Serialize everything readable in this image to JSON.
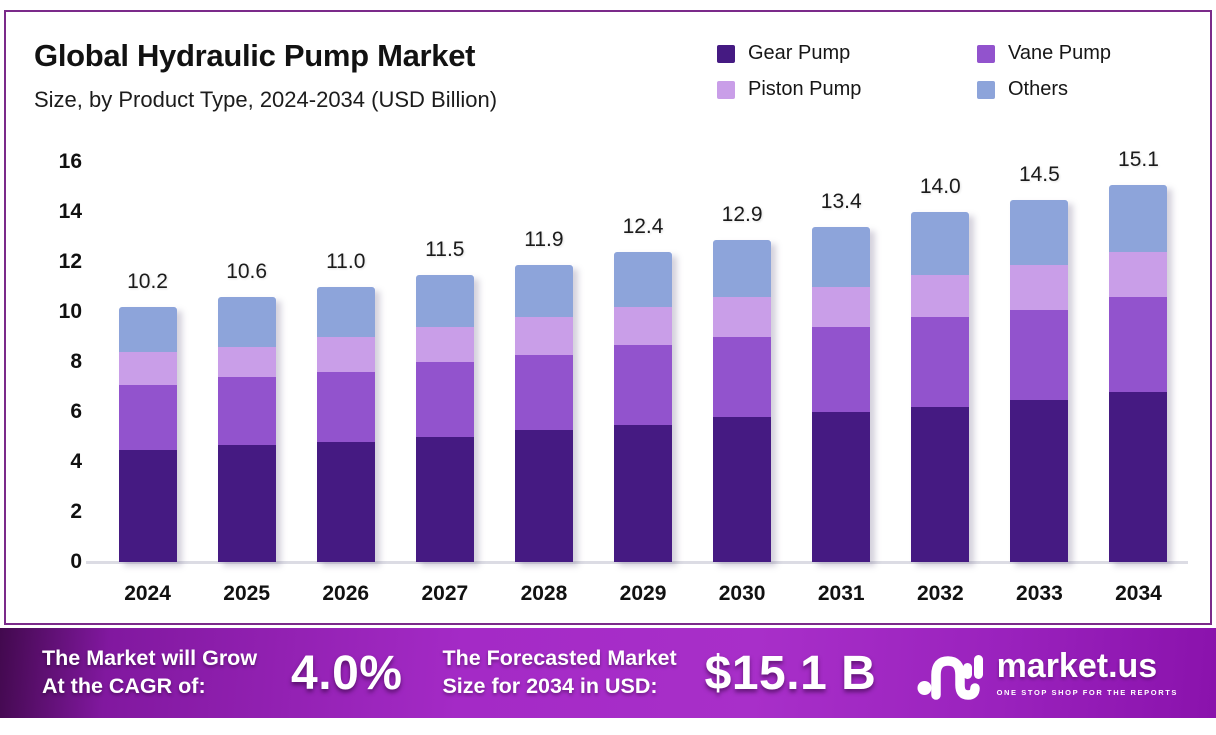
{
  "header": {
    "title": "Global Hydraulic Pump Market",
    "subtitle": "Size, by Product Type, 2024-2034 (USD Billion)"
  },
  "chart_data": {
    "type": "bar",
    "stacked": true,
    "title": "Global Hydraulic Pump Market Size, by Product Type, 2024-2034 (USD Billion)",
    "categories": [
      "2024",
      "2025",
      "2026",
      "2027",
      "2028",
      "2029",
      "2030",
      "2031",
      "2032",
      "2033",
      "2034"
    ],
    "series": [
      {
        "name": "Gear Pump",
        "color": "#451a82",
        "values": [
          4.5,
          4.7,
          4.8,
          5.0,
          5.3,
          5.5,
          5.8,
          6.0,
          6.2,
          6.5,
          6.8
        ]
      },
      {
        "name": "Vane Pump",
        "color": "#9253cd",
        "values": [
          2.6,
          2.7,
          2.8,
          3.0,
          3.0,
          3.2,
          3.2,
          3.4,
          3.6,
          3.6,
          3.8
        ]
      },
      {
        "name": "Piston Pump",
        "color": "#c99ee8",
        "values": [
          1.3,
          1.2,
          1.4,
          1.4,
          1.5,
          1.5,
          1.6,
          1.6,
          1.7,
          1.8,
          1.8
        ]
      },
      {
        "name": "Others",
        "color": "#8da4da",
        "values": [
          1.8,
          2.0,
          2.0,
          2.1,
          2.1,
          2.2,
          2.3,
          2.4,
          2.5,
          2.6,
          2.7
        ]
      }
    ],
    "totals": [
      "10.2",
      "10.6",
      "11.0",
      "11.5",
      "11.9",
      "12.4",
      "12.9",
      "13.4",
      "14.0",
      "14.5",
      "15.1"
    ],
    "y_ticks": [
      16,
      14,
      12,
      10,
      8,
      6,
      4,
      2,
      0
    ],
    "ylim": [
      0,
      16
    ],
    "xlabel": "",
    "ylabel": "",
    "grid": false,
    "legend_position": "top-right"
  },
  "banner": {
    "cagr_label_line1": "The Market will Grow",
    "cagr_label_line2": "At the CAGR of:",
    "cagr_value": "4.0%",
    "forecast_label_line1": "The Forecasted Market",
    "forecast_label_line2": "Size for 2034 in USD:",
    "forecast_value": "$15.1 B",
    "logo": {
      "text": "market.us",
      "tagline": "ONE STOP SHOP FOR THE REPORTS"
    }
  },
  "colors": {
    "card_border": "#7b2a8a",
    "banner_purple": "#a42ac6",
    "baseline": "#dcdce4"
  },
  "icons": {
    "logo_icon": "market-us-monogram-icon"
  }
}
